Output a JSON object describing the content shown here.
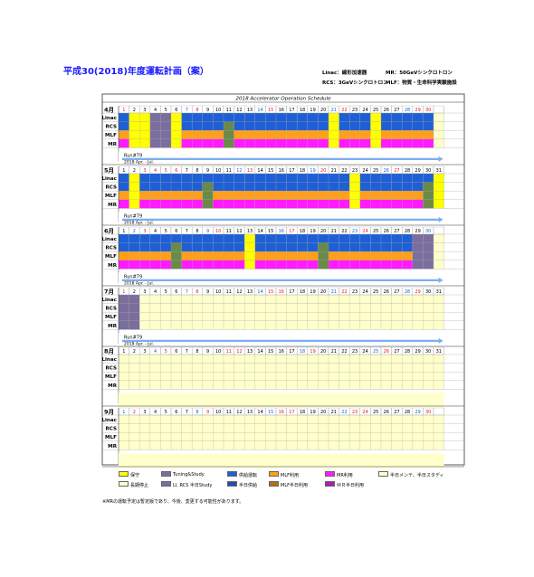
{
  "title": "平成30(2018)年度運転計画（案）",
  "header_legend": {
    "linac": "Linac：線形加速器",
    "mr": "MR：50GeVシンクロトロン",
    "rcs": "RCS：3GeVシンクロトロン",
    "mlf": "MLF：物質・生命科学実験施設"
  },
  "schedule_caption": "2018 Accelerator Operation Schedule",
  "row_labels": [
    "Linac",
    "RCS",
    "MLF",
    "MR"
  ],
  "run_label": "Run#79",
  "run_sub": "2018 Apr. - Jul.",
  "colors": {
    "yellow": "#ffff00",
    "tuning": "#7a6e9e",
    "supply": "#1f5fd6",
    "supply_half": "#1f4fa8",
    "mlf": "#ff9f1a",
    "mlf_half": "#b0701a",
    "mr": "#ff1aff",
    "mr_half": "#b01ab0",
    "maint": "#ffffcc",
    "green": "#6a8a4a"
  },
  "months": [
    {
      "label": "4月",
      "days": 30,
      "first_dow": 0,
      "red_days": [
        1,
        8,
        15,
        22,
        29,
        30
      ],
      "blue_days": [
        7,
        14,
        21,
        28
      ],
      "yellow": [
        2,
        3,
        6,
        21,
        25
      ],
      "tuning": [
        4,
        5
      ],
      "green_days": [
        11,
        25
      ],
      "run": true
    },
    {
      "label": "5月",
      "days": 31,
      "first_dow": 2,
      "red_days": [
        3,
        4,
        5,
        6,
        13,
        20,
        27
      ],
      "blue_days": [
        12,
        19,
        26
      ],
      "yellow": [
        2,
        23,
        31
      ],
      "tuning": [],
      "green_days": [
        9,
        30
      ],
      "run": true
    },
    {
      "label": "6月",
      "days": 30,
      "first_dow": 5,
      "red_days": [
        3,
        10,
        17,
        24
      ],
      "blue_days": [
        2,
        9,
        16,
        23,
        30
      ],
      "yellow": [
        13
      ],
      "tuning": [
        29,
        30
      ],
      "green_days": [
        6,
        20
      ],
      "run": true
    },
    {
      "label": "7月",
      "days": 31,
      "first_dow": 0,
      "red_days": [
        1,
        8,
        15,
        16,
        22,
        29
      ],
      "blue_days": [
        7,
        14,
        21,
        28
      ],
      "yellow": [],
      "tuning": [
        1,
        2
      ],
      "green_days": [],
      "run": true,
      "operate_until": 2
    },
    {
      "label": "8月",
      "days": 31,
      "first_dow": 3,
      "red_days": [
        5,
        11,
        12,
        19,
        26
      ],
      "blue_days": [
        4,
        18,
        25
      ],
      "yellow": [],
      "tuning": [],
      "green_days": [],
      "run": false,
      "operate_until": 0
    },
    {
      "label": "9月",
      "days": 30,
      "first_dow": 6,
      "red_days": [
        2,
        9,
        16,
        17,
        23,
        24,
        30
      ],
      "blue_days": [
        1,
        8,
        15,
        22,
        29
      ],
      "yellow": [],
      "tuning": [],
      "green_days": [],
      "run": false,
      "operate_until": 0
    }
  ],
  "legend": [
    {
      "swatch": "yellow",
      "label": "保守"
    },
    {
      "swatch": "tuning",
      "label": "Tuning&Study"
    },
    {
      "swatch": "supply",
      "label": "供給運転"
    },
    {
      "swatch": "mlf",
      "label": "MLF利用"
    },
    {
      "swatch": "mr",
      "label": "MR利用"
    },
    {
      "swatch": "maint",
      "label": "半日メンテ、半日スタディ"
    },
    {
      "swatch": "maint",
      "label": "長期停止"
    },
    {
      "swatch": "tuning",
      "label": "LI, RCS 半日Study"
    },
    {
      "swatch": "supply_half",
      "label": "半日供給"
    },
    {
      "swatch": "mlf_half",
      "label": "MLF半日利用"
    },
    {
      "swatch": "mr_half",
      "label": "ＭＲ半日利用"
    }
  ],
  "note": "※MRの運転予定は暫定版であり、今後、変更する可能性があります。"
}
